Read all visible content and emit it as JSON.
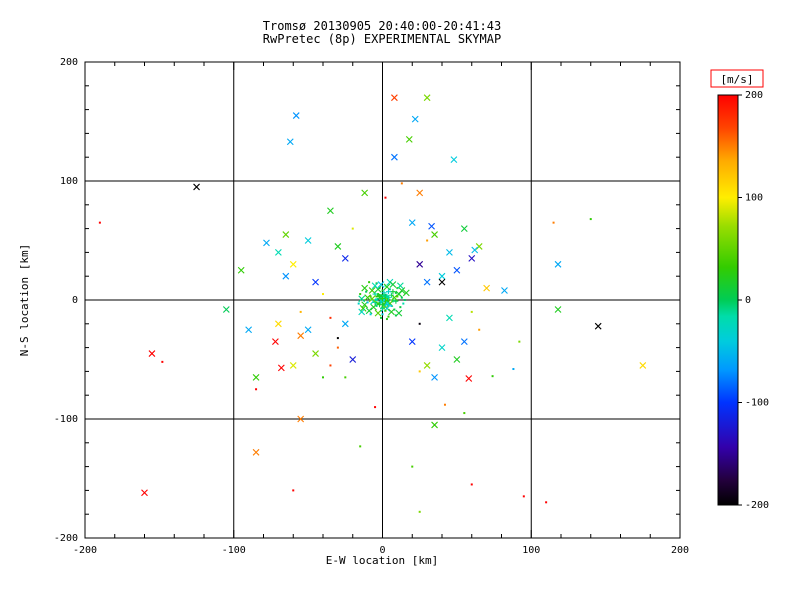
{
  "title_line1": "Tromsø 20130905 20:40:00-20:41:43",
  "title_line2": "RwPretec (8p) EXPERIMENTAL SKYMAP",
  "chart_data": {
    "type": "scatter",
    "title": "Tromsø 20130905 20:40:00-20:41:43",
    "subtitle": "RwPretec (8p) EXPERIMENTAL SKYMAP",
    "xlabel": "E-W location [km]",
    "ylabel": "N-S location [km]",
    "xlim": [
      -200,
      200
    ],
    "ylim": [
      -200,
      200
    ],
    "xticks": [
      -200,
      -100,
      0,
      100,
      200
    ],
    "yticks": [
      -200,
      -100,
      0,
      100,
      200
    ],
    "grid": true,
    "grid_color": "#000000",
    "axis_color": "#000000",
    "colorbar": {
      "label": "[m/s]",
      "label_color": "#ff0000",
      "units": "m/s",
      "min": -200,
      "max": 200,
      "ticks": [
        200,
        100,
        0,
        -100,
        -200
      ],
      "stops": [
        [
          0.0,
          "#000000"
        ],
        [
          0.06,
          "#23003c"
        ],
        [
          0.14,
          "#3300aa"
        ],
        [
          0.25,
          "#0033ff"
        ],
        [
          0.33,
          "#0099ff"
        ],
        [
          0.4,
          "#00ccdd"
        ],
        [
          0.46,
          "#00ddaa"
        ],
        [
          0.5,
          "#00cc55"
        ],
        [
          0.58,
          "#33cc00"
        ],
        [
          0.68,
          "#99dd00"
        ],
        [
          0.75,
          "#ffee00"
        ],
        [
          0.84,
          "#ffaa00"
        ],
        [
          0.92,
          "#ff4400"
        ],
        [
          1.0,
          "#ff0000"
        ]
      ]
    },
    "marker_legend": {
      "0": "dot",
      "1": "cross",
      "2": "plus"
    },
    "points": [
      [
        2,
        3,
        10,
        2
      ],
      [
        -3,
        5,
        20,
        0
      ],
      [
        1,
        -4,
        -20,
        1
      ],
      [
        4,
        1,
        30,
        0
      ],
      [
        -5,
        -2,
        0,
        2
      ],
      [
        0,
        8,
        15,
        0
      ],
      [
        3,
        -7,
        -35,
        1
      ],
      [
        -2,
        10,
        5,
        0
      ],
      [
        6,
        4,
        -10,
        2
      ],
      [
        -8,
        3,
        25,
        0
      ],
      [
        5,
        -3,
        40,
        1
      ],
      [
        -1,
        -9,
        -50,
        0
      ],
      [
        7,
        7,
        10,
        2
      ],
      [
        -6,
        -6,
        20,
        1
      ],
      [
        2,
        12,
        -15,
        0
      ],
      [
        9,
        -1,
        0,
        2
      ],
      [
        -10,
        2,
        30,
        1
      ],
      [
        0,
        -12,
        -40,
        0
      ],
      [
        11,
        5,
        15,
        1
      ],
      [
        -4,
        14,
        10,
        0
      ],
      [
        3,
        3,
        -25,
        2
      ],
      [
        -7,
        8,
        35,
        1
      ],
      [
        8,
        -8,
        -5,
        0
      ],
      [
        -12,
        -4,
        20,
        1
      ],
      [
        13,
        2,
        0,
        0
      ],
      [
        1,
        6,
        -30,
        2
      ],
      [
        -3,
        -11,
        45,
        1
      ],
      [
        5,
        9,
        -20,
        0
      ],
      [
        -9,
        -9,
        10,
        1
      ],
      [
        10,
        10,
        25,
        0
      ],
      [
        -14,
        1,
        -10,
        1
      ],
      [
        4,
        -14,
        30,
        0
      ],
      [
        -1,
        13,
        -45,
        1
      ],
      [
        12,
        -6,
        5,
        0
      ],
      [
        -5,
        5,
        -15,
        2
      ],
      [
        6,
        -10,
        20,
        1
      ],
      [
        -11,
        7,
        0,
        0
      ],
      [
        2,
        -2,
        -55,
        1
      ],
      [
        -2,
        2,
        60,
        0
      ],
      [
        7,
        0,
        -5,
        2
      ],
      [
        0,
        4,
        18,
        0
      ],
      [
        -6,
        -1,
        -28,
        1
      ],
      [
        9,
        6,
        8,
        0
      ],
      [
        -13,
        -7,
        33,
        1
      ],
      [
        14,
        -3,
        -18,
        0
      ],
      [
        1,
        -6,
        48,
        2
      ],
      [
        -4,
        -5,
        -8,
        0
      ],
      [
        3,
        11,
        22,
        1
      ],
      [
        -8,
        -12,
        -38,
        0
      ],
      [
        11,
        -11,
        12,
        1
      ],
      [
        -15,
        5,
        28,
        0
      ],
      [
        5,
        15,
        -22,
        1
      ],
      [
        0,
        0,
        5,
        2
      ],
      [
        -2,
        -3,
        -12,
        0
      ],
      [
        8,
        2,
        38,
        1
      ],
      [
        -10,
        -2,
        -48,
        0
      ],
      [
        13,
        8,
        18,
        1
      ],
      [
        -1,
        -15,
        8,
        0
      ],
      [
        4,
        7,
        -32,
        2
      ],
      [
        -7,
        1,
        52,
        1
      ],
      [
        15,
        0,
        -2,
        0
      ],
      [
        -3,
        9,
        15,
        1
      ],
      [
        6,
        -5,
        -42,
        0
      ],
      [
        -12,
        10,
        25,
        1
      ],
      [
        2,
        -9,
        35,
        0
      ],
      [
        -5,
        12,
        -18,
        1
      ],
      [
        9,
        -13,
        5,
        0
      ],
      [
        -14,
        -10,
        -25,
        1
      ],
      [
        10,
        3,
        45,
        0
      ],
      [
        0,
        -7,
        -8,
        2
      ],
      [
        16,
        6,
        20,
        1
      ],
      [
        -16,
        -3,
        -30,
        0
      ],
      [
        7,
        13,
        10,
        1
      ],
      [
        -9,
        15,
        30,
        0
      ],
      [
        12,
        12,
        -12,
        1
      ],
      [
        3,
        -16,
        25,
        0
      ],
      [
        1,
        1,
        15,
        0
      ],
      [
        -1,
        2,
        -10,
        0
      ],
      [
        2,
        -1,
        25,
        2
      ],
      [
        -2,
        -2,
        5,
        0
      ],
      [
        0,
        3,
        -20,
        0
      ],
      [
        3,
        0,
        30,
        2
      ],
      [
        -3,
        1,
        -5,
        0
      ],
      [
        1,
        -3,
        40,
        0
      ],
      [
        -1,
        -1,
        -30,
        2
      ],
      [
        2,
        2,
        12,
        0
      ],
      [
        0,
        -2,
        -18,
        0
      ],
      [
        -2,
        3,
        22,
        2
      ],
      [
        3,
        -2,
        -25,
        0
      ],
      [
        -3,
        -3,
        35,
        0
      ],
      [
        1,
        4,
        -8,
        2
      ],
      [
        4,
        -1,
        18,
        0
      ],
      [
        -4,
        0,
        -22,
        0
      ],
      [
        0,
        1,
        28,
        2
      ],
      [
        2,
        -4,
        -35,
        0
      ],
      [
        -1,
        4,
        8,
        0
      ],
      [
        4,
        2,
        -15,
        2
      ],
      [
        -4,
        -2,
        20,
        0
      ],
      [
        1,
        0,
        -40,
        0
      ],
      [
        0,
        -4,
        10,
        2
      ],
      [
        3,
        3,
        -12,
        0
      ],
      [
        -3,
        4,
        16,
        0
      ],
      [
        4,
        -4,
        -28,
        2
      ],
      [
        -4,
        3,
        32,
        0
      ],
      [
        2,
        4,
        -2,
        0
      ],
      [
        -2,
        -4,
        14,
        2
      ],
      [
        -25,
        -20,
        -60,
        1
      ],
      [
        30,
        15,
        -80,
        1
      ],
      [
        -40,
        5,
        100,
        0
      ],
      [
        20,
        -35,
        -100,
        1
      ],
      [
        -55,
        -30,
        150,
        1
      ],
      [
        45,
        40,
        -50,
        1
      ],
      [
        -30,
        45,
        20,
        1
      ],
      [
        60,
        -10,
        80,
        0
      ],
      [
        -20,
        -50,
        -120,
        1
      ],
      [
        35,
        55,
        40,
        1
      ],
      [
        -65,
        20,
        -70,
        1
      ],
      [
        25,
        -60,
        120,
        0
      ],
      [
        -45,
        -45,
        60,
        1
      ],
      [
        50,
        25,
        -90,
        1
      ],
      [
        -35,
        -15,
        180,
        0
      ],
      [
        40,
        -40,
        -30,
        1
      ],
      [
        -60,
        -55,
        90,
        1
      ],
      [
        55,
        60,
        10,
        1
      ],
      [
        -25,
        35,
        -110,
        1
      ],
      [
        65,
        -25,
        140,
        0
      ],
      [
        -50,
        50,
        -40,
        1
      ],
      [
        30,
        -55,
        70,
        1
      ],
      [
        -70,
        -20,
        110,
        1
      ],
      [
        20,
        65,
        -60,
        1
      ],
      [
        -40,
        -65,
        30,
        0
      ],
      [
        60,
        35,
        -130,
        1
      ],
      [
        -30,
        -40,
        160,
        0
      ],
      [
        45,
        -15,
        -20,
        1
      ],
      [
        -65,
        55,
        50,
        1
      ],
      [
        25,
        30,
        -150,
        1
      ],
      [
        -55,
        -10,
        130,
        0
      ],
      [
        35,
        -65,
        -70,
        1
      ],
      [
        -20,
        60,
        90,
        0
      ],
      [
        50,
        -50,
        20,
        1
      ],
      [
        -45,
        15,
        -100,
        1
      ],
      [
        65,
        45,
        60,
        1
      ],
      [
        -35,
        -55,
        170,
        0
      ],
      [
        40,
        20,
        -40,
        1
      ],
      [
        -60,
        30,
        100,
        1
      ],
      [
        55,
        -35,
        -80,
        1
      ],
      [
        -25,
        -65,
        40,
        0
      ],
      [
        70,
        10,
        120,
        1
      ],
      [
        -50,
        -25,
        -60,
        1
      ],
      [
        30,
        50,
        140,
        0
      ],
      [
        -70,
        40,
        -20,
        1
      ],
      [
        -125,
        95,
        -200,
        1
      ],
      [
        -190,
        65,
        200,
        0
      ],
      [
        -155,
        -45,
        200,
        1
      ],
      [
        -148,
        -52,
        200,
        0
      ],
      [
        -160,
        -162,
        200,
        1
      ],
      [
        -85,
        -128,
        150,
        1
      ],
      [
        -85,
        -75,
        200,
        0
      ],
      [
        -68,
        -57,
        200,
        1
      ],
      [
        -72,
        -35,
        200,
        1
      ],
      [
        145,
        -22,
        -200,
        1
      ],
      [
        175,
        -55,
        110,
        1
      ],
      [
        140,
        68,
        30,
        0
      ],
      [
        115,
        65,
        150,
        0
      ],
      [
        30,
        170,
        60,
        1
      ],
      [
        22,
        152,
        -60,
        1
      ],
      [
        18,
        135,
        40,
        1
      ],
      [
        -58,
        155,
        -70,
        1
      ],
      [
        -62,
        133,
        -60,
        1
      ],
      [
        -12,
        90,
        40,
        1
      ],
      [
        2,
        86,
        200,
        0
      ],
      [
        25,
        90,
        150,
        1
      ],
      [
        82,
        8,
        -60,
        1
      ],
      [
        88,
        -58,
        -60,
        0
      ],
      [
        74,
        -64,
        30,
        0
      ],
      [
        58,
        -66,
        200,
        1
      ],
      [
        42,
        -88,
        150,
        0
      ],
      [
        55,
        -95,
        40,
        0
      ],
      [
        35,
        -105,
        30,
        1
      ],
      [
        -5,
        -90,
        200,
        0
      ],
      [
        -15,
        -123,
        40,
        0
      ],
      [
        -55,
        -100,
        150,
        1
      ],
      [
        -85,
        -65,
        30,
        1
      ],
      [
        -90,
        -25,
        -60,
        1
      ],
      [
        -95,
        25,
        30,
        1
      ],
      [
        20,
        -140,
        40,
        0
      ],
      [
        60,
        -155,
        200,
        0
      ],
      [
        95,
        -165,
        200,
        0
      ],
      [
        110,
        -170,
        200,
        0
      ],
      [
        -60,
        -160,
        200,
        0
      ],
      [
        25,
        -178,
        60,
        0
      ],
      [
        48,
        118,
        -40,
        1
      ],
      [
        8,
        120,
        -80,
        1
      ],
      [
        -35,
        75,
        20,
        1
      ],
      [
        118,
        30,
        -60,
        1
      ],
      [
        62,
        42,
        -50,
        1
      ],
      [
        -105,
        -8,
        0,
        1
      ],
      [
        33,
        62,
        -90,
        1
      ],
      [
        13,
        98,
        150,
        0
      ],
      [
        40,
        15,
        -200,
        1
      ],
      [
        25,
        -20,
        -195,
        0
      ],
      [
        -30,
        -32,
        -200,
        0
      ],
      [
        118,
        -8,
        20,
        1
      ],
      [
        -78,
        48,
        -60,
        1
      ],
      [
        92,
        -35,
        60,
        0
      ],
      [
        8,
        170,
        170,
        1
      ]
    ]
  }
}
